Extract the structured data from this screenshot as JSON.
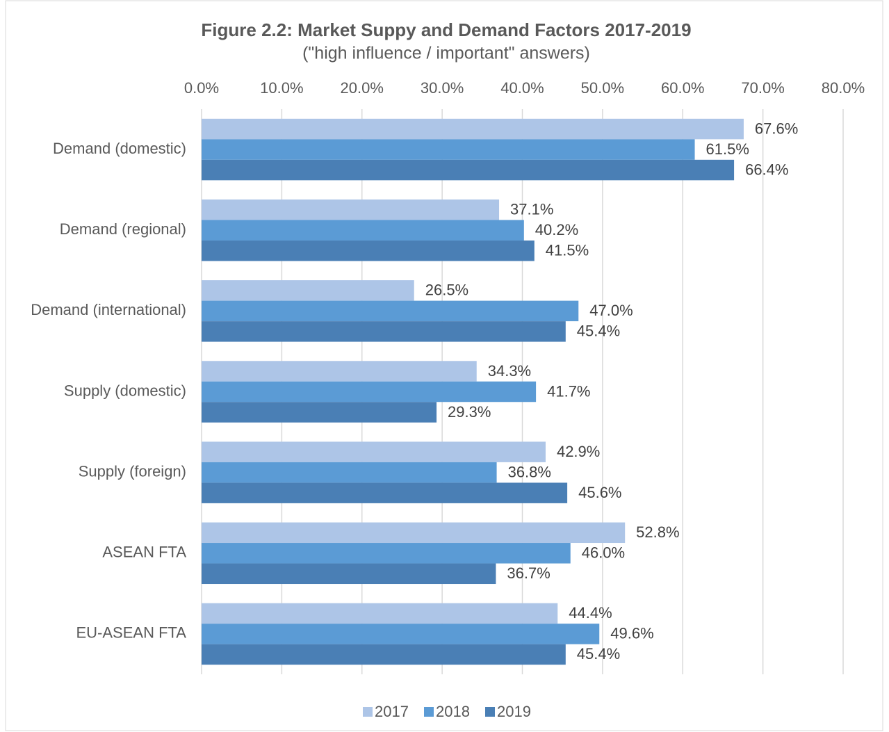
{
  "chart_data": {
    "type": "bar",
    "orientation": "horizontal",
    "title": "Figure 2.2: Market Suppy and Demand Factors 2017-2019",
    "subtitle": "(\"high influence / important\" answers)",
    "categories": [
      "Demand (domestic)",
      "Demand (regional)",
      "Demand (international)",
      "Supply (domestic)",
      "Supply (foreign)",
      "ASEAN FTA",
      "EU-ASEAN FTA"
    ],
    "series": [
      {
        "name": "2017",
        "color": "#adc5e7",
        "values": [
          67.6,
          37.1,
          26.5,
          34.3,
          42.9,
          52.8,
          44.4
        ],
        "value_labels": [
          "67.6%",
          "37.1%",
          "26.5%",
          "34.3%",
          "42.9%",
          "52.8%",
          "44.4%"
        ]
      },
      {
        "name": "2018",
        "color": "#5b9bd5",
        "values": [
          61.5,
          40.2,
          47.0,
          41.7,
          36.8,
          46.0,
          49.6
        ],
        "value_labels": [
          "61.5%",
          "40.2%",
          "47.0%",
          "41.7%",
          "36.8%",
          "46.0%",
          "49.6%"
        ]
      },
      {
        "name": "2019",
        "color": "#4a7fb5",
        "values": [
          66.4,
          41.5,
          45.4,
          29.3,
          45.6,
          36.7,
          45.4
        ],
        "value_labels": [
          "66.4%",
          "41.5%",
          "45.4%",
          "29.3%",
          "45.6%",
          "36.7%",
          "45.4%"
        ]
      }
    ],
    "xlim": [
      0,
      80
    ],
    "xticks": [
      {
        "value": 0,
        "label": "0.0%"
      },
      {
        "value": 10,
        "label": "10.0%"
      },
      {
        "value": 20,
        "label": "20.0%"
      },
      {
        "value": 30,
        "label": "30.0%"
      },
      {
        "value": 40,
        "label": "40.0%"
      },
      {
        "value": 50,
        "label": "50.0%"
      },
      {
        "value": 60,
        "label": "60.0%"
      },
      {
        "value": 70,
        "label": "70.0%"
      },
      {
        "value": 80,
        "label": "80.0%"
      }
    ],
    "grid": true,
    "legend": "bottom"
  }
}
